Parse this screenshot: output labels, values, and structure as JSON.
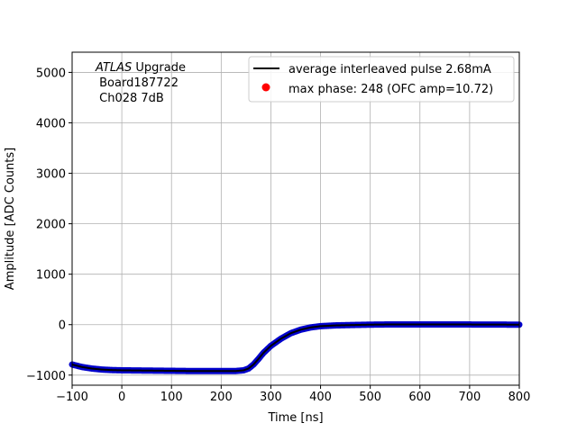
{
  "chart_data": {
    "type": "scatter",
    "xlabel": "Time [ns]",
    "ylabel": "Amplitude [ADC Counts]",
    "xlim": [
      -100,
      800
    ],
    "ylim": [
      -1200,
      5400
    ],
    "x_ticks": [
      -100,
      0,
      100,
      200,
      300,
      400,
      500,
      600,
      700,
      800
    ],
    "x_tick_labels": [
      "−100",
      "0",
      "100",
      "200",
      "300",
      "400",
      "500",
      "600",
      "700",
      "800"
    ],
    "y_ticks": [
      -1000,
      0,
      1000,
      2000,
      3000,
      4000,
      5000
    ],
    "y_tick_labels": [
      "−1000",
      "0",
      "1000",
      "2000",
      "3000",
      "4000",
      "5000"
    ],
    "grid": true,
    "legend_position": "top-right",
    "annotation": {
      "line1_italic": "ATLAS",
      "line1_rest": " Upgrade",
      "line2": " Board187722",
      "line3": " Ch028 7dB"
    },
    "series": [
      {
        "name": "average interleaved pulse 2.68mA",
        "style": "line",
        "color": "#000000",
        "x": [
          -100,
          -80,
          -60,
          -40,
          -20,
          0,
          50,
          100,
          150,
          200,
          230,
          245,
          255,
          265,
          275,
          285,
          300,
          320,
          340,
          360,
          380,
          400,
          430,
          460,
          500,
          550,
          600,
          700,
          800
        ],
        "y": [
          -790,
          -840,
          -870,
          -890,
          -900,
          -905,
          -910,
          -915,
          -920,
          -920,
          -918,
          -905,
          -870,
          -790,
          -680,
          -560,
          -420,
          -280,
          -170,
          -100,
          -55,
          -30,
          -15,
          -8,
          0,
          5,
          5,
          3,
          0
        ]
      },
      {
        "name": "max phase: 248 (OFC amp=10.72)",
        "style": "marker",
        "color": "#ff0000"
      }
    ],
    "scatter_color": "#0000cc"
  }
}
